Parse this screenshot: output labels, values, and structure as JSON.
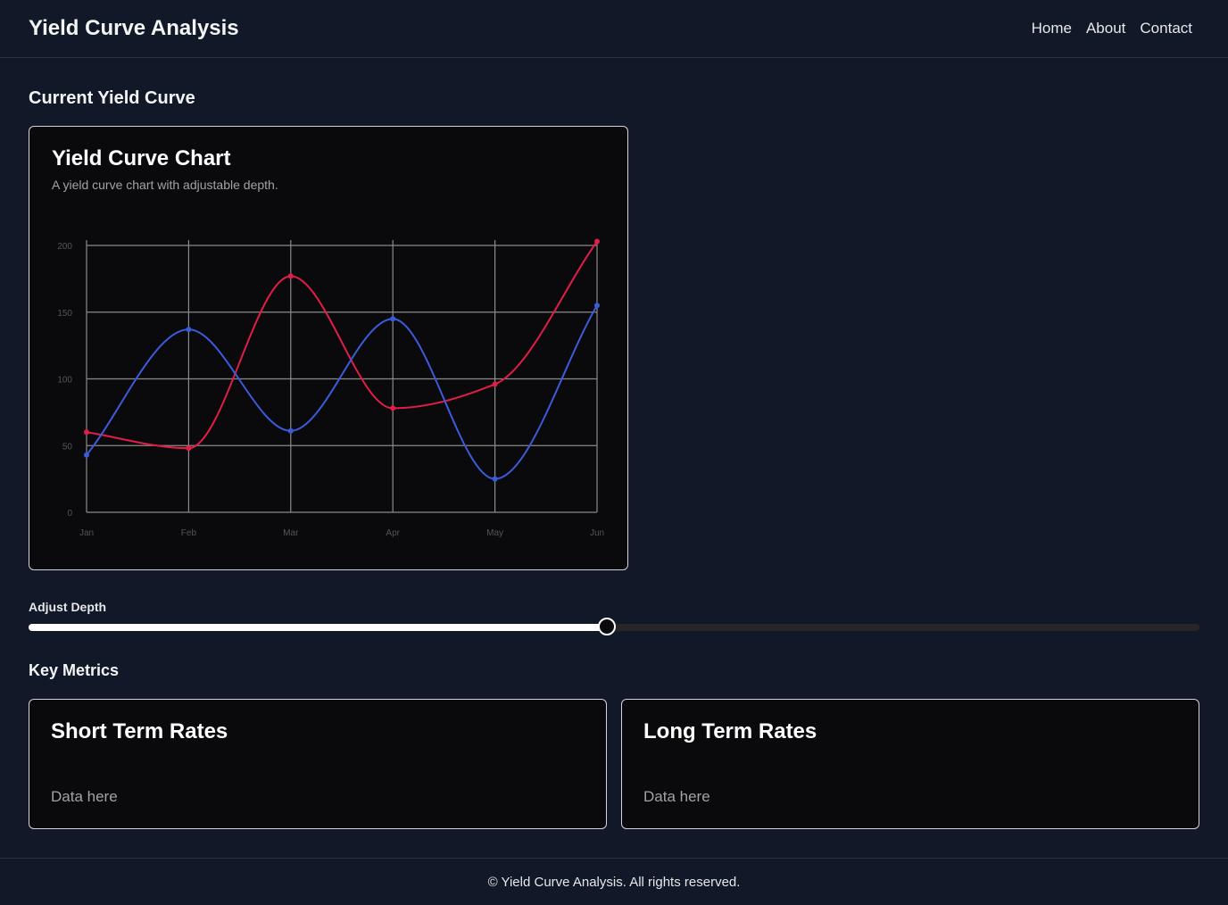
{
  "header": {
    "title": "Yield Curve Analysis",
    "nav": [
      "Home",
      "About",
      "Contact"
    ]
  },
  "current_section": {
    "title": "Current Yield Curve"
  },
  "chart_card": {
    "title": "Yield Curve Chart",
    "description": "A yield curve chart with adjustable depth."
  },
  "chart_data": {
    "type": "line",
    "categories": [
      "Jan",
      "Feb",
      "Mar",
      "Apr",
      "May",
      "Jun"
    ],
    "series": [
      {
        "color": "#e11d48",
        "values": [
          60,
          48,
          177,
          78,
          96,
          203
        ]
      },
      {
        "color": "#3b5bdb",
        "values": [
          43,
          137,
          61,
          145,
          25,
          155
        ]
      }
    ],
    "ylim": [
      0,
      200
    ],
    "yticks": [
      "0",
      "50",
      "100",
      "150",
      "200"
    ],
    "grid": true
  },
  "slider": {
    "label": "Adjust Depth",
    "value": 0.494
  },
  "metrics": {
    "title": "Key Metrics",
    "cards": [
      {
        "title": "Short Term Rates",
        "body": "Data here"
      },
      {
        "title": "Long Term Rates",
        "body": "Data here"
      }
    ]
  },
  "footer": {
    "text": "© Yield Curve Analysis. All rights reserved."
  }
}
